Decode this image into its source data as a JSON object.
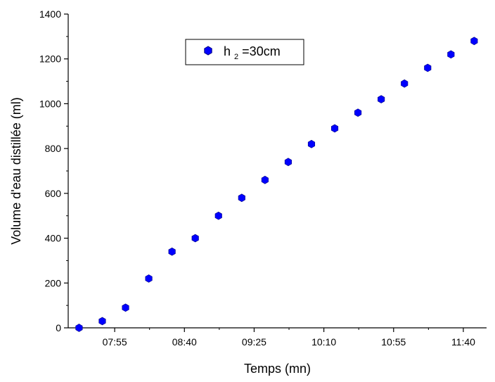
{
  "chart_data": {
    "type": "scatter",
    "xlabel": "Temps (mn)",
    "ylabel": "Volume d'eau distillée (ml)",
    "x_tick_labels": [
      "07:55",
      "08:40",
      "09:25",
      "10:10",
      "10:55",
      "11:40"
    ],
    "x_tick_minutes": [
      475,
      520,
      565,
      610,
      655,
      700
    ],
    "xlim_minutes": [
      445,
      715
    ],
    "ylim": [
      0,
      1400
    ],
    "y_ticks": [
      0,
      200,
      400,
      600,
      800,
      1000,
      1200,
      1400
    ],
    "grid": false,
    "legend_position": "top-center",
    "series": [
      {
        "name": "h2=30cm",
        "legend_main": "h",
        "legend_sub": "2",
        "legend_rest": "=30cm",
        "color": "#0000ff",
        "marker": "hexagon",
        "x_minutes": [
          452,
          467,
          482,
          497,
          512,
          527,
          542,
          557,
          572,
          587,
          602,
          617,
          632,
          647,
          662,
          677,
          692,
          707
        ],
        "values": [
          0,
          30,
          90,
          220,
          340,
          400,
          500,
          580,
          660,
          740,
          820,
          890,
          960,
          1020,
          1090,
          1160,
          1220,
          1280
        ]
      }
    ]
  }
}
